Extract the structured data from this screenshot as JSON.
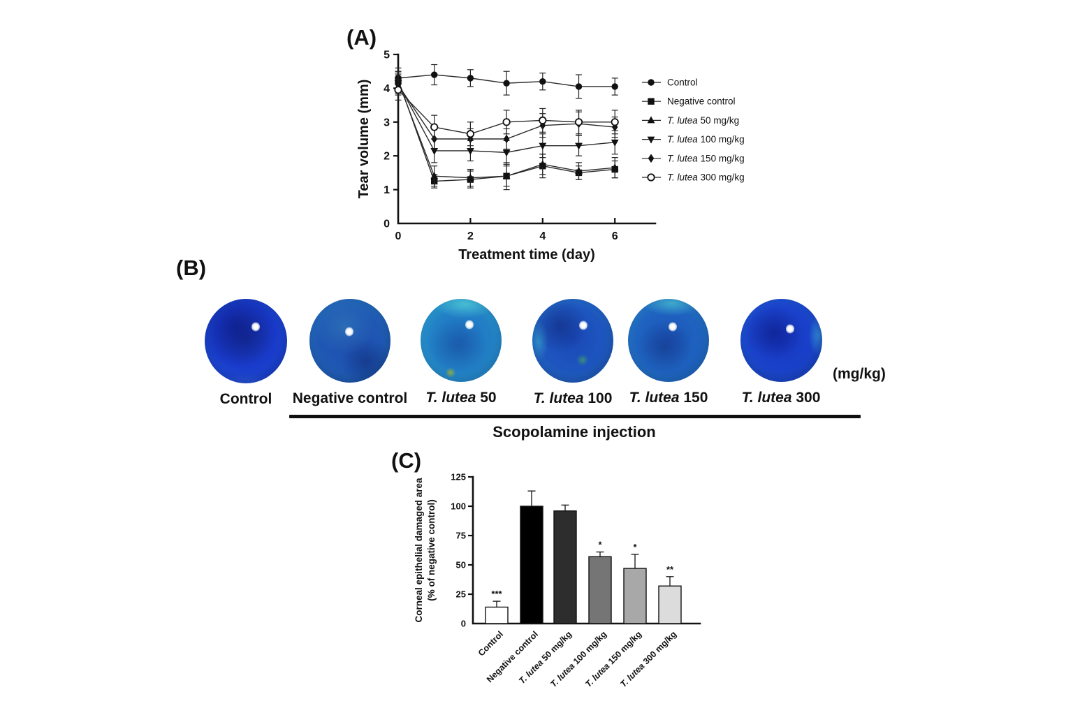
{
  "panels": {
    "a": {
      "label": "(A)"
    },
    "b": {
      "label": "(B)"
    },
    "c": {
      "label": "(C)"
    }
  },
  "panel_b": {
    "unit_label": "(mg/kg)",
    "bracket_label": "Scopolamine injection",
    "items": [
      {
        "species": "",
        "label": "Control"
      },
      {
        "species": "",
        "label": "Negative control"
      },
      {
        "species": "T. lutea ",
        "label": "50"
      },
      {
        "species": "T. lutea ",
        "label": "100"
      },
      {
        "species": "T. lutea ",
        "label": "150"
      },
      {
        "species": "T. lutea ",
        "label": "300"
      }
    ]
  },
  "chart_data": [
    {
      "type": "line",
      "title": "",
      "xlabel": "Treatment time (day)",
      "ylabel": "Tear volume (mm)",
      "xlim": [
        0,
        7.1
      ],
      "ylim": [
        0,
        5
      ],
      "xticks": [
        0,
        2,
        4,
        6
      ],
      "yticks": [
        0,
        1,
        2,
        3,
        4,
        5
      ],
      "x": [
        0,
        1,
        2,
        3,
        4,
        5,
        6
      ],
      "grid": false,
      "legend_position": "right",
      "series": [
        {
          "species": "",
          "name": "Control",
          "marker": "circle-filled",
          "values": [
            4.3,
            4.4,
            4.3,
            4.15,
            4.2,
            4.05,
            4.05
          ],
          "errors": [
            0.3,
            0.3,
            0.25,
            0.35,
            0.25,
            0.35,
            0.25
          ]
        },
        {
          "species": "",
          "name": "Negative control",
          "marker": "square-filled",
          "values": [
            4.25,
            1.25,
            1.3,
            1.4,
            1.7,
            1.5,
            1.6
          ],
          "errors": [
            0.25,
            0.2,
            0.25,
            0.4,
            0.35,
            0.2,
            0.25
          ]
        },
        {
          "species": "T. lutea ",
          "name": "50 mg/kg",
          "marker": "triangle-up-filled",
          "values": [
            4.2,
            1.4,
            1.35,
            1.4,
            1.75,
            1.55,
            1.65
          ],
          "errors": [
            0.3,
            0.3,
            0.25,
            0.3,
            0.3,
            0.25,
            0.3
          ]
        },
        {
          "species": "T. lutea ",
          "name": "100 mg/kg",
          "marker": "triangle-down-filled",
          "values": [
            4.15,
            2.15,
            2.15,
            2.1,
            2.3,
            2.3,
            2.4
          ],
          "errors": [
            0.3,
            0.35,
            0.3,
            0.35,
            0.35,
            0.3,
            0.35
          ]
        },
        {
          "species": "T. lutea ",
          "name": "150 mg/kg",
          "marker": "diamond-filled",
          "values": [
            4.1,
            2.5,
            2.5,
            2.5,
            2.9,
            2.95,
            2.85
          ],
          "errors": [
            0.3,
            0.3,
            0.3,
            0.3,
            0.35,
            0.35,
            0.3
          ]
        },
        {
          "species": "T. lutea ",
          "name": "300 mg/kg",
          "marker": "circle-open",
          "values": [
            3.95,
            2.85,
            2.65,
            3.0,
            3.05,
            3.0,
            3.0
          ],
          "errors": [
            0.3,
            0.35,
            0.35,
            0.35,
            0.35,
            0.35,
            0.35
          ]
        }
      ]
    },
    {
      "type": "bar",
      "title": "",
      "xlabel": "",
      "ylabel_line1": "Corneal epithelial damaged area",
      "ylabel_line2": "(% of negative control)",
      "ylim": [
        0,
        125
      ],
      "yticks": [
        0,
        25,
        50,
        75,
        100,
        125
      ],
      "categories": [
        {
          "species": "",
          "label": "Control"
        },
        {
          "species": "",
          "label": "Negative control"
        },
        {
          "species": "T. lutea ",
          "label": "50 mg/kg"
        },
        {
          "species": "T. lutea ",
          "label": "100 mg/kg"
        },
        {
          "species": "T. lutea ",
          "label": "150 mg/kg"
        },
        {
          "species": "T. lutea ",
          "label": "300 mg/kg"
        }
      ],
      "values": [
        14,
        100,
        96,
        57,
        47,
        32
      ],
      "errors": [
        5,
        13,
        5,
        4,
        12,
        8
      ],
      "significance": [
        "***",
        "",
        "",
        "*",
        "*",
        "**"
      ],
      "bar_colors": [
        "#ffffff",
        "#000000",
        "#2d2d2d",
        "#757575",
        "#a8a8a8",
        "#dcdcdc"
      ]
    }
  ]
}
